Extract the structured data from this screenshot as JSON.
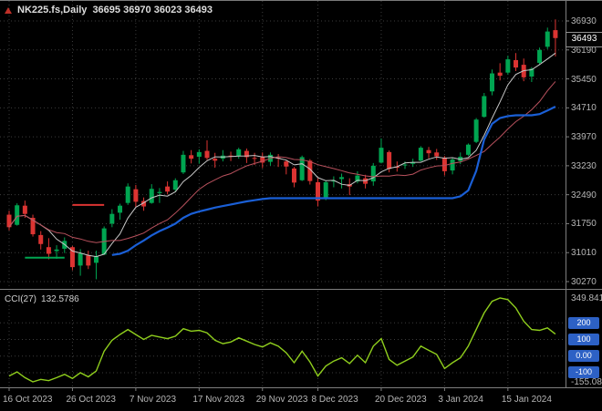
{
  "colors": {
    "background": "#000000",
    "grid": "#3c3c3c",
    "separator": "#7e7e7e",
    "candle_up": "#00a551",
    "candle_down": "#dc3432",
    "ma_fast": "#c8c8c8",
    "ma_slow": "#b8515d",
    "trail_blue": "#1a5fd6",
    "cci_line": "#8fce1d",
    "level_box": "#2d61c5",
    "axis_text": "#b6b6b6",
    "title_text": "#dedede"
  },
  "header": {
    "symbol_title": "NK225.fs,Daily",
    "ohlc_text": "36695 36970 36023 36493"
  },
  "main_panel": {
    "price_axis_labels": [
      "36930",
      "36190",
      "35450",
      "34710",
      "33970",
      "33230",
      "32490",
      "31750",
      "31010",
      "30270"
    ],
    "current_price": "36493"
  },
  "indicator_panel": {
    "label_name": "CCI(27)",
    "label_value": "132.5786",
    "scale_max_label": "349.8415",
    "scale_min_label": "-155.085",
    "levels": [
      {
        "label": "200",
        "value": 200
      },
      {
        "label": "100",
        "value": 100
      },
      {
        "label": "0.00",
        "value": 0
      },
      {
        "label": "-100",
        "value": -100
      }
    ]
  },
  "x_axis": {
    "tick_labels": [
      {
        "label": "16 Oct 2023",
        "index": 0
      },
      {
        "label": "26 Oct 2023",
        "index": 8
      },
      {
        "label": "7 Nov 2023",
        "index": 16
      },
      {
        "label": "17 Nov 2023",
        "index": 24
      },
      {
        "label": "29 Nov 2023",
        "index": 32
      },
      {
        "label": "8 Dec 2023",
        "index": 39
      },
      {
        "label": "20 Dec 2023",
        "index": 47
      },
      {
        "label": "3 Jan 2024",
        "index": 55
      },
      {
        "label": "15 Jan 2024",
        "index": 63
      }
    ]
  },
  "chart_data": [
    {
      "type": "candlestick",
      "title": "NK225.fs Daily",
      "xlabel": "",
      "ylabel": "",
      "ylim": [
        30270,
        36930
      ],
      "grid": "dashed",
      "legend": "none",
      "dates": [
        "2023-10-16",
        "2023-10-17",
        "2023-10-18",
        "2023-10-19",
        "2023-10-20",
        "2023-10-23",
        "2023-10-24",
        "2023-10-25",
        "2023-10-26",
        "2023-10-27",
        "2023-10-30",
        "2023-10-31",
        "2023-11-01",
        "2023-11-02",
        "2023-11-03",
        "2023-11-06",
        "2023-11-07",
        "2023-11-08",
        "2023-11-09",
        "2023-11-10",
        "2023-11-13",
        "2023-11-14",
        "2023-11-15",
        "2023-11-16",
        "2023-11-17",
        "2023-11-20",
        "2023-11-21",
        "2023-11-22",
        "2023-11-23",
        "2023-11-24",
        "2023-11-27",
        "2023-11-28",
        "2023-11-29",
        "2023-11-30",
        "2023-12-01",
        "2023-12-04",
        "2023-12-05",
        "2023-12-06",
        "2023-12-07",
        "2023-12-08",
        "2023-12-11",
        "2023-12-12",
        "2023-12-13",
        "2023-12-14",
        "2023-12-15",
        "2023-12-18",
        "2023-12-19",
        "2023-12-20",
        "2023-12-21",
        "2023-12-22",
        "2023-12-25",
        "2023-12-26",
        "2023-12-27",
        "2023-12-28",
        "2023-12-29",
        "2024-01-03",
        "2024-01-04",
        "2024-01-05",
        "2024-01-08",
        "2024-01-09",
        "2024-01-10",
        "2024-01-11",
        "2024-01-12",
        "2024-01-15",
        "2024-01-16",
        "2024-01-17",
        "2024-01-18",
        "2024-01-19",
        "2024-01-22",
        "2024-01-23"
      ],
      "ohlc": [
        [
          31980,
          32080,
          31580,
          31660
        ],
        [
          31720,
          32270,
          31700,
          32220
        ],
        [
          32210,
          32340,
          31900,
          32000
        ],
        [
          31900,
          31980,
          31420,
          31480
        ],
        [
          31460,
          31560,
          31090,
          31230
        ],
        [
          31150,
          31380,
          30840,
          30980
        ],
        [
          31050,
          31200,
          30850,
          31090
        ],
        [
          31110,
          31400,
          31000,
          31310
        ],
        [
          31150,
          31180,
          30560,
          30640
        ],
        [
          30680,
          31100,
          30420,
          30990
        ],
        [
          30940,
          31060,
          30590,
          30680
        ],
        [
          30750,
          31060,
          30330,
          30920
        ],
        [
          30960,
          31680,
          30950,
          31630
        ],
        [
          31750,
          32120,
          31660,
          32000
        ],
        [
          32030,
          32260,
          31850,
          32210
        ],
        [
          32280,
          32780,
          32230,
          32700
        ],
        [
          32630,
          32740,
          32180,
          32310
        ],
        [
          32330,
          32420,
          32080,
          32190
        ],
        [
          32280,
          32760,
          32260,
          32640
        ],
        [
          32530,
          32660,
          32280,
          32560
        ],
        [
          32700,
          32830,
          32500,
          32570
        ],
        [
          32620,
          32910,
          32560,
          32860
        ],
        [
          33060,
          33610,
          33020,
          33510
        ],
        [
          33500,
          33630,
          33290,
          33410
        ],
        [
          33460,
          33650,
          33280,
          33580
        ],
        [
          33610,
          33880,
          33380,
          33430
        ],
        [
          33410,
          33560,
          33180,
          33360
        ],
        [
          33410,
          33630,
          33340,
          33490
        ],
        [
          33490,
          33590,
          33350,
          33460
        ],
        [
          33480,
          33690,
          33410,
          33650
        ],
        [
          33610,
          33670,
          33300,
          33450
        ],
        [
          33430,
          33560,
          33250,
          33410
        ],
        [
          33450,
          33570,
          33170,
          33310
        ],
        [
          33330,
          33570,
          33230,
          33510
        ],
        [
          33440,
          33530,
          33200,
          33430
        ],
        [
          33340,
          33380,
          33010,
          33210
        ],
        [
          33160,
          33200,
          32680,
          32800
        ],
        [
          32860,
          33490,
          32840,
          33450
        ],
        [
          33360,
          33400,
          32750,
          32840
        ],
        [
          32810,
          32910,
          32190,
          32340
        ],
        [
          32390,
          32860,
          32350,
          32810
        ],
        [
          32830,
          32960,
          32680,
          32850
        ],
        [
          32890,
          33030,
          32650,
          32940
        ],
        [
          32760,
          32910,
          32480,
          32700
        ],
        [
          32830,
          33090,
          32780,
          32980
        ],
        [
          32910,
          33000,
          32650,
          32770
        ],
        [
          32830,
          33300,
          32720,
          33230
        ],
        [
          33310,
          33930,
          33290,
          33690
        ],
        [
          33580,
          33620,
          33060,
          33150
        ],
        [
          33210,
          33340,
          33080,
          33180
        ],
        [
          33240,
          33340,
          33150,
          33260
        ],
        [
          33280,
          33410,
          33200,
          33310
        ],
        [
          33360,
          33730,
          33340,
          33690
        ],
        [
          33630,
          33710,
          33420,
          33550
        ],
        [
          33570,
          33660,
          33380,
          33470
        ],
        [
          33440,
          33480,
          32980,
          33090
        ],
        [
          33110,
          33440,
          33010,
          33390
        ],
        [
          33350,
          33570,
          33270,
          33460
        ],
        [
          33510,
          33800,
          33480,
          33770
        ],
        [
          33840,
          34450,
          33810,
          34410
        ],
        [
          34480,
          35090,
          34460,
          35010
        ],
        [
          35130,
          35690,
          35030,
          35590
        ],
        [
          35610,
          35850,
          35410,
          35530
        ],
        [
          35610,
          36040,
          35560,
          35950
        ],
        [
          35930,
          36110,
          35650,
          35740
        ],
        [
          35810,
          35970,
          35390,
          35490
        ],
        [
          35510,
          35750,
          35370,
          35710
        ],
        [
          35860,
          36250,
          35810,
          36190
        ],
        [
          36270,
          36760,
          36210,
          36660
        ],
        [
          36695,
          36970,
          36023,
          36493
        ]
      ],
      "overlays": {
        "ma_fast": {
          "type": "sma",
          "period": 5
        },
        "ma_slow": {
          "type": "sma",
          "period": 13
        },
        "trail_stop": {
          "start_index": 13,
          "values": [
            30950,
            30980,
            31060,
            31200,
            31320,
            31450,
            31560,
            31650,
            31750,
            31900,
            32000,
            32060,
            32110,
            32160,
            32200,
            32240,
            32280,
            32320,
            32350,
            32380,
            32400,
            32400,
            32400,
            32400,
            32400,
            32400,
            32400,
            32400,
            32400,
            32400,
            32400,
            32400,
            32400,
            32400,
            32400,
            32400,
            32400,
            32400,
            32400,
            32400,
            32400,
            32400,
            32400,
            32400,
            32450,
            32600,
            33100,
            33900,
            34300,
            34450,
            34500,
            34520,
            34520,
            34520,
            34550,
            34640,
            34740
          ]
        },
        "stop_segments": [
          {
            "color": "green",
            "value": 30880,
            "from": 2,
            "to": 7
          },
          {
            "color": "red",
            "value": 32230,
            "from": 8,
            "to": 12
          }
        ]
      }
    },
    {
      "type": "line",
      "name": "CCI(27)",
      "ylim": [
        -155.085,
        349.8415
      ],
      "levels": [
        200,
        100,
        0,
        -100
      ],
      "values": [
        -120,
        -95,
        -130,
        -155.085,
        -140,
        -148,
        -130,
        -110,
        -135,
        -100,
        -125,
        -90,
        30,
        95,
        130,
        160,
        130,
        100,
        125,
        115,
        105,
        120,
        165,
        150,
        155,
        140,
        95,
        75,
        85,
        110,
        90,
        70,
        55,
        80,
        60,
        20,
        -40,
        30,
        -35,
        -120,
        -60,
        -30,
        -10,
        -45,
        5,
        -40,
        60,
        105,
        -20,
        -55,
        -30,
        -5,
        60,
        35,
        10,
        -75,
        -40,
        -10,
        60,
        160,
        260,
        330,
        349.8415,
        340,
        290,
        210,
        160,
        155,
        170,
        132.5786
      ]
    }
  ]
}
